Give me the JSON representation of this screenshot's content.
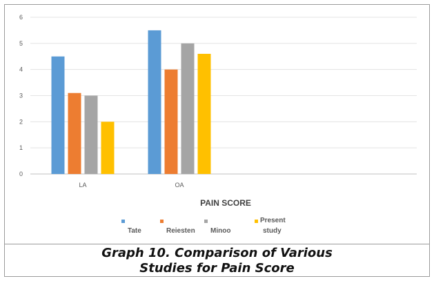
{
  "chart_data": {
    "type": "bar",
    "categories": [
      "LA",
      "OA"
    ],
    "series": [
      {
        "name": "Tate",
        "values": [
          4.5,
          5.5
        ],
        "color": "#5b9bd5"
      },
      {
        "name": "Reiesten",
        "values": [
          3.1,
          4.0
        ],
        "color": "#ed7d31"
      },
      {
        "name": "Minoo",
        "values": [
          3.0,
          5.0
        ],
        "color": "#a5a5a5"
      },
      {
        "name": "Present study",
        "values": [
          2.0,
          4.6
        ],
        "color": "#ffc000"
      }
    ],
    "xlabel": "PAIN SCORE",
    "ylabel": "",
    "ylim": [
      0,
      6
    ],
    "yticks": [
      "0",
      "1",
      "2",
      "3",
      "4",
      "5",
      "6"
    ],
    "grid": true,
    "legend_position": "bottom"
  },
  "caption": {
    "line1": "Graph 10. Comparison of Various",
    "line2": "Studies for Pain Score"
  }
}
